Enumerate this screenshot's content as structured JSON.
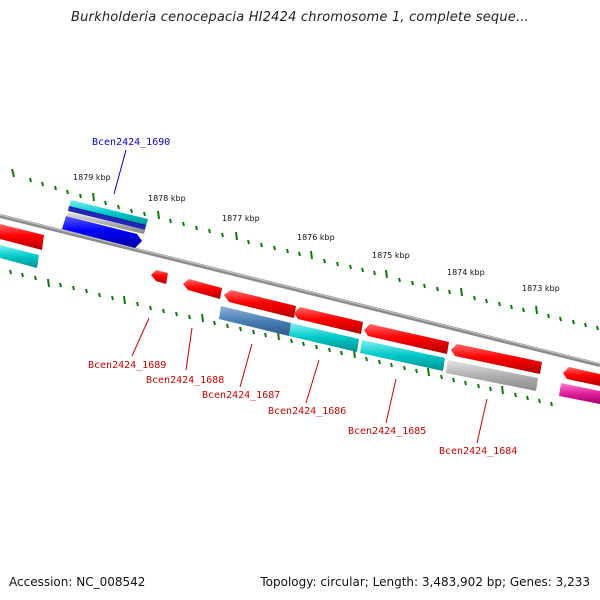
{
  "title": "Burkholderia cenocepacia HI2424 chromosome 1, complete seque...",
  "footer": {
    "accession": "Accession: NC_008542",
    "stats": "Topology: circular; Length: 3,483,902 bp; Genes: 3,233"
  },
  "scale_labels": [
    "1879 kbp",
    "1878 kbp",
    "1877 kbp",
    "1876 kbp",
    "1875 kbp",
    "1874 kbp",
    "1873 kbp"
  ],
  "genes": [
    {
      "id": "Bcen2424_1690",
      "strand": "forward",
      "color": "#0000cc"
    },
    {
      "id": "Bcen2424_1689",
      "strand": "reverse",
      "color": "#cc0000"
    },
    {
      "id": "Bcen2424_1688",
      "strand": "reverse",
      "color": "#cc0000"
    },
    {
      "id": "Bcen2424_1687",
      "strand": "reverse",
      "color": "#cc0000"
    },
    {
      "id": "Bcen2424_1686",
      "strand": "reverse",
      "color": "#cc0000"
    },
    {
      "id": "Bcen2424_1685",
      "strand": "reverse",
      "color": "#cc0000"
    },
    {
      "id": "Bcen2424_1684",
      "strand": "reverse",
      "color": "#cc0000"
    }
  ],
  "colors": {
    "forward_gene": "#0000ff",
    "reverse_gene": "#ff0000",
    "backbone": "#8c8c8c",
    "tick": "#0a7a0a",
    "cog_cyan": "#00cccc",
    "cog_steel": "#4a7fb5",
    "cog_gray": "#b0b0b0",
    "cog_magenta": "#e0209a"
  }
}
